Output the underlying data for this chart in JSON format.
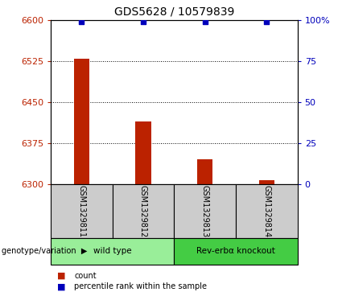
{
  "title": "GDS5628 / 10579839",
  "samples": [
    "GSM1329811",
    "GSM1329812",
    "GSM1329813",
    "GSM1329814"
  ],
  "count_values": [
    6530,
    6415,
    6345,
    6307
  ],
  "percentile_values": [
    99,
    99,
    99,
    99
  ],
  "ylim_left": [
    6300,
    6600
  ],
  "ylim_right": [
    0,
    100
  ],
  "yticks_left": [
    6300,
    6375,
    6450,
    6525,
    6600
  ],
  "yticks_right": [
    0,
    25,
    50,
    75,
    100
  ],
  "bar_color": "#bb2200",
  "dot_color": "#0000bb",
  "groups": [
    {
      "label": "wild type",
      "indices": [
        0,
        1
      ],
      "color": "#99ee99"
    },
    {
      "label": "Rev-erbα knockout",
      "indices": [
        2,
        3
      ],
      "color": "#44cc44"
    }
  ],
  "sample_box_color": "#cccccc",
  "legend_count_color": "#bb2200",
  "legend_dot_color": "#0000bb",
  "genotype_label": "genotype/variation",
  "title_fontsize": 10,
  "tick_fontsize": 8,
  "bar_width": 0.25
}
